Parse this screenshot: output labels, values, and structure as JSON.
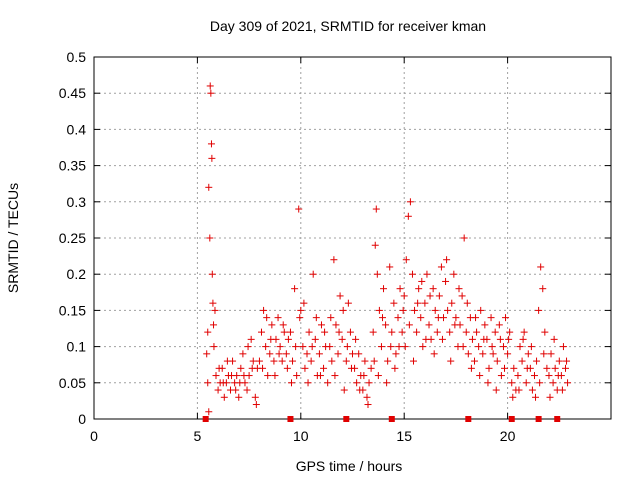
{
  "chart_data": {
    "type": "scatter",
    "title": "Day 309 of 2021, SRMTID for receiver kman",
    "xlabel": "GPS time / hours",
    "ylabel": "SRMTID / TECUs",
    "xlim": [
      0,
      25
    ],
    "ylim": [
      0,
      0.5
    ],
    "x_ticks": [
      0,
      5,
      10,
      15,
      20
    ],
    "y_ticks": [
      0,
      0.05,
      0.1,
      0.15,
      0.2,
      0.25,
      0.3,
      0.35,
      0.4,
      0.45,
      0.5
    ],
    "x_tick_labels": [
      "0",
      "5",
      "10",
      "15",
      "20"
    ],
    "y_tick_labels": [
      "0",
      "0.05",
      "0.1",
      "0.15",
      "0.2",
      "0.25",
      "0.3",
      "0.35",
      "0.4",
      "0.45",
      "0.5"
    ],
    "grid": true,
    "marker": "+",
    "color": "#e00000",
    "series": [
      {
        "name": "SRMTID",
        "points": [
          [
            5.45,
            0.09
          ],
          [
            5.5,
            0.12
          ],
          [
            5.55,
            0.32
          ],
          [
            5.6,
            0.25
          ],
          [
            5.62,
            0.46
          ],
          [
            5.65,
            0.45
          ],
          [
            5.68,
            0.38
          ],
          [
            5.7,
            0.36
          ],
          [
            5.72,
            0.2
          ],
          [
            5.75,
            0.16
          ],
          [
            5.78,
            0.13
          ],
          [
            5.8,
            0.1
          ],
          [
            5.5,
            0.05
          ],
          [
            5.55,
            0.01
          ],
          [
            5.85,
            0.15
          ],
          [
            5.9,
            0.06
          ],
          [
            6.0,
            0.04
          ],
          [
            6.1,
            0.05
          ],
          [
            6.2,
            0.07
          ],
          [
            6.3,
            0.03
          ],
          [
            6.4,
            0.05
          ],
          [
            6.5,
            0.06
          ],
          [
            6.6,
            0.04
          ],
          [
            6.7,
            0.08
          ],
          [
            6.8,
            0.05
          ],
          [
            6.9,
            0.06
          ],
          [
            7.0,
            0.03
          ],
          [
            7.1,
            0.07
          ],
          [
            7.2,
            0.09
          ],
          [
            7.3,
            0.05
          ],
          [
            7.4,
            0.04
          ],
          [
            7.5,
            0.06
          ],
          [
            7.6,
            0.11
          ],
          [
            7.7,
            0.08
          ],
          [
            7.8,
            0.03
          ],
          [
            7.9,
            0.07
          ],
          [
            6.05,
            0.07
          ],
          [
            6.25,
            0.05
          ],
          [
            6.45,
            0.08
          ],
          [
            6.65,
            0.06
          ],
          [
            6.85,
            0.04
          ],
          [
            7.05,
            0.05
          ],
          [
            7.25,
            0.06
          ],
          [
            7.45,
            0.1
          ],
          [
            7.65,
            0.07
          ],
          [
            7.85,
            0.02
          ],
          [
            8.0,
            0.08
          ],
          [
            8.1,
            0.12
          ],
          [
            8.2,
            0.15
          ],
          [
            8.3,
            0.1
          ],
          [
            8.4,
            0.06
          ],
          [
            8.5,
            0.09
          ],
          [
            8.6,
            0.13
          ],
          [
            8.7,
            0.08
          ],
          [
            8.8,
            0.11
          ],
          [
            8.9,
            0.14
          ],
          [
            9.0,
            0.1
          ],
          [
            9.1,
            0.08
          ],
          [
            9.2,
            0.12
          ],
          [
            9.3,
            0.09
          ],
          [
            9.4,
            0.11
          ],
          [
            8.15,
            0.07
          ],
          [
            8.35,
            0.14
          ],
          [
            8.55,
            0.11
          ],
          [
            8.75,
            0.06
          ],
          [
            8.95,
            0.09
          ],
          [
            9.15,
            0.13
          ],
          [
            9.35,
            0.07
          ],
          [
            9.5,
            0.12
          ],
          [
            9.6,
            0.08
          ],
          [
            9.7,
            0.18
          ],
          [
            9.8,
            0.06
          ],
          [
            9.9,
            0.29
          ],
          [
            10.0,
            0.15
          ],
          [
            10.1,
            0.1
          ],
          [
            10.2,
            0.07
          ],
          [
            10.3,
            0.09
          ],
          [
            10.4,
            0.12
          ],
          [
            10.5,
            0.08
          ],
          [
            10.6,
            0.2
          ],
          [
            10.7,
            0.11
          ],
          [
            10.8,
            0.06
          ],
          [
            10.9,
            0.09
          ],
          [
            11.0,
            0.13
          ],
          [
            11.1,
            0.07
          ],
          [
            11.2,
            0.1
          ],
          [
            11.3,
            0.05
          ],
          [
            9.55,
            0.05
          ],
          [
            9.75,
            0.1
          ],
          [
            9.95,
            0.14
          ],
          [
            10.15,
            0.16
          ],
          [
            10.35,
            0.05
          ],
          [
            10.55,
            0.1
          ],
          [
            10.75,
            0.14
          ],
          [
            10.95,
            0.06
          ],
          [
            11.15,
            0.12
          ],
          [
            11.4,
            0.1
          ],
          [
            11.5,
            0.08
          ],
          [
            11.6,
            0.22
          ],
          [
            11.7,
            0.13
          ],
          [
            11.8,
            0.09
          ],
          [
            11.9,
            0.17
          ],
          [
            12.0,
            0.11
          ],
          [
            12.1,
            0.04
          ],
          [
            12.2,
            0.08
          ],
          [
            12.3,
            0.16
          ],
          [
            12.4,
            0.12
          ],
          [
            12.5,
            0.09
          ],
          [
            12.6,
            0.07
          ],
          [
            12.7,
            0.05
          ],
          [
            12.8,
            0.09
          ],
          [
            12.9,
            0.06
          ],
          [
            13.0,
            0.04
          ],
          [
            13.1,
            0.08
          ],
          [
            13.2,
            0.03
          ],
          [
            13.3,
            0.05
          ],
          [
            13.4,
            0.07
          ],
          [
            11.45,
            0.14
          ],
          [
            11.65,
            0.06
          ],
          [
            11.85,
            0.12
          ],
          [
            12.05,
            0.15
          ],
          [
            12.25,
            0.1
          ],
          [
            12.45,
            0.07
          ],
          [
            12.65,
            0.11
          ],
          [
            12.85,
            0.04
          ],
          [
            13.05,
            0.06
          ],
          [
            13.25,
            0.02
          ],
          [
            13.5,
            0.12
          ],
          [
            13.6,
            0.24
          ],
          [
            13.65,
            0.29
          ],
          [
            13.7,
            0.2
          ],
          [
            13.8,
            0.15
          ],
          [
            13.9,
            0.1
          ],
          [
            14.0,
            0.18
          ],
          [
            14.1,
            0.13
          ],
          [
            14.2,
            0.08
          ],
          [
            14.3,
            0.21
          ],
          [
            14.4,
            0.12
          ],
          [
            14.5,
            0.16
          ],
          [
            14.6,
            0.09
          ],
          [
            14.7,
            0.14
          ],
          [
            14.8,
            0.18
          ],
          [
            14.9,
            0.12
          ],
          [
            13.55,
            0.08
          ],
          [
            13.75,
            0.06
          ],
          [
            13.95,
            0.14
          ],
          [
            14.15,
            0.05
          ],
          [
            14.35,
            0.1
          ],
          [
            14.55,
            0.07
          ],
          [
            14.75,
            0.1
          ],
          [
            14.95,
            0.15
          ],
          [
            15.0,
            0.17
          ],
          [
            15.1,
            0.22
          ],
          [
            15.2,
            0.28
          ],
          [
            15.3,
            0.3
          ],
          [
            15.4,
            0.2
          ],
          [
            15.5,
            0.15
          ],
          [
            15.6,
            0.12
          ],
          [
            15.7,
            0.18
          ],
          [
            15.8,
            0.14
          ],
          [
            15.9,
            0.1
          ],
          [
            16.0,
            0.16
          ],
          [
            16.1,
            0.2
          ],
          [
            16.2,
            0.13
          ],
          [
            16.3,
            0.11
          ],
          [
            16.4,
            0.18
          ],
          [
            16.5,
            0.15
          ],
          [
            16.6,
            0.12
          ],
          [
            16.7,
            0.17
          ],
          [
            16.8,
            0.21
          ],
          [
            16.9,
            0.14
          ],
          [
            15.05,
            0.1
          ],
          [
            15.25,
            0.13
          ],
          [
            15.45,
            0.08
          ],
          [
            15.65,
            0.16
          ],
          [
            15.85,
            0.19
          ],
          [
            16.05,
            0.11
          ],
          [
            16.25,
            0.17
          ],
          [
            16.45,
            0.09
          ],
          [
            16.65,
            0.14
          ],
          [
            16.85,
            0.11
          ],
          [
            17.0,
            0.19
          ],
          [
            17.1,
            0.15
          ],
          [
            17.2,
            0.12
          ],
          [
            17.3,
            0.16
          ],
          [
            17.4,
            0.2
          ],
          [
            17.5,
            0.14
          ],
          [
            17.6,
            0.1
          ],
          [
            17.7,
            0.13
          ],
          [
            17.8,
            0.17
          ],
          [
            17.9,
            0.25
          ],
          [
            18.0,
            0.12
          ],
          [
            18.1,
            0.09
          ],
          [
            18.2,
            0.14
          ],
          [
            18.3,
            0.11
          ],
          [
            18.4,
            0.08
          ],
          [
            18.5,
            0.12
          ],
          [
            18.6,
            0.1
          ],
          [
            18.7,
            0.15
          ],
          [
            18.8,
            0.09
          ],
          [
            18.9,
            0.13
          ],
          [
            17.05,
            0.22
          ],
          [
            17.25,
            0.08
          ],
          [
            17.45,
            0.13
          ],
          [
            17.65,
            0.18
          ],
          [
            17.85,
            0.1
          ],
          [
            18.05,
            0.16
          ],
          [
            18.25,
            0.07
          ],
          [
            18.45,
            0.14
          ],
          [
            18.65,
            0.06
          ],
          [
            18.85,
            0.11
          ],
          [
            19.0,
            0.11
          ],
          [
            19.1,
            0.07
          ],
          [
            19.2,
            0.14
          ],
          [
            19.3,
            0.09
          ],
          [
            19.4,
            0.12
          ],
          [
            19.5,
            0.08
          ],
          [
            19.6,
            0.13
          ],
          [
            19.7,
            0.06
          ],
          [
            19.8,
            0.1
          ],
          [
            19.9,
            0.14
          ],
          [
            20.0,
            0.09
          ],
          [
            20.1,
            0.12
          ],
          [
            20.2,
            0.05
          ],
          [
            20.3,
            0.07
          ],
          [
            20.4,
            0.04
          ],
          [
            19.05,
            0.05
          ],
          [
            19.25,
            0.1
          ],
          [
            19.45,
            0.04
          ],
          [
            19.65,
            0.11
          ],
          [
            19.85,
            0.07
          ],
          [
            20.05,
            0.11
          ],
          [
            20.25,
            0.03
          ],
          [
            20.5,
            0.06
          ],
          [
            20.6,
            0.1
          ],
          [
            20.7,
            0.08
          ],
          [
            20.8,
            0.12
          ],
          [
            20.9,
            0.05
          ],
          [
            21.0,
            0.09
          ],
          [
            21.1,
            0.07
          ],
          [
            21.2,
            0.04
          ],
          [
            21.3,
            0.06
          ],
          [
            21.4,
            0.08
          ],
          [
            21.5,
            0.15
          ],
          [
            21.6,
            0.21
          ],
          [
            21.7,
            0.18
          ],
          [
            21.8,
            0.12
          ],
          [
            21.9,
            0.07
          ],
          [
            20.55,
            0.04
          ],
          [
            20.75,
            0.11
          ],
          [
            20.95,
            0.07
          ],
          [
            21.15,
            0.1
          ],
          [
            21.35,
            0.03
          ],
          [
            21.55,
            0.05
          ],
          [
            21.75,
            0.09
          ],
          [
            22.0,
            0.06
          ],
          [
            22.1,
            0.09
          ],
          [
            22.2,
            0.05
          ],
          [
            22.3,
            0.07
          ],
          [
            22.4,
            0.04
          ],
          [
            22.5,
            0.08
          ],
          [
            22.6,
            0.06
          ],
          [
            22.7,
            0.1
          ],
          [
            22.8,
            0.07
          ],
          [
            22.9,
            0.05
          ],
          [
            22.05,
            0.03
          ],
          [
            22.25,
            0.11
          ],
          [
            22.45,
            0.06
          ],
          [
            22.65,
            0.04
          ],
          [
            22.85,
            0.08
          ]
        ]
      }
    ],
    "bottom_markers_x": [
      5.4,
      9.5,
      12.2,
      14.4,
      18.1,
      20.2,
      21.5,
      22.4
    ]
  }
}
